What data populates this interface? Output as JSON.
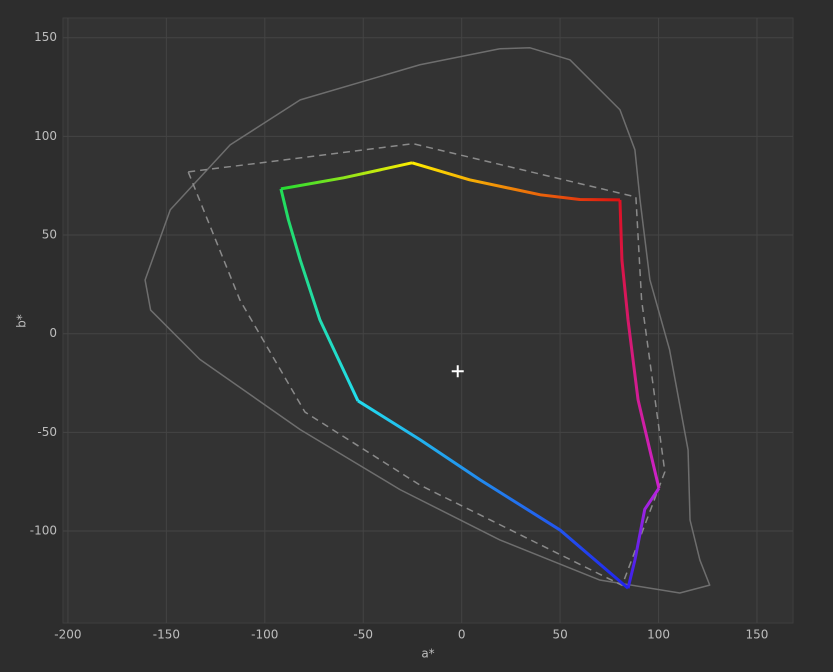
{
  "chart_data": {
    "type": "line",
    "x_label": "a*",
    "y_label": "b*",
    "xlim": [
      -202.5,
      168.3
    ],
    "ylim": [
      -146.6,
      160
    ],
    "xticks": [
      -200,
      -150,
      -100,
      -50,
      0,
      50,
      100,
      150
    ],
    "yticks": [
      -100,
      -50,
      0,
      50,
      100,
      150
    ],
    "grid": true,
    "series": [
      {
        "color": "#6e6e6e",
        "dash": "solid",
        "x": [
          19.4,
          -21.2,
          -82,
          -117.6,
          -148,
          -160.8,
          -158,
          -133,
          -82,
          -31.3,
          19.4,
          70,
          110.8,
          126,
          121,
          116,
          115,
          105.6,
          95.6,
          90.6,
          88,
          80.4,
          55,
          34.7,
          19.4
        ],
        "values": [
          144.4,
          136.3,
          118.5,
          95.7,
          62.8,
          27.2,
          12,
          -13,
          -48.6,
          -79,
          -104.5,
          -124.8,
          -131.4,
          -127.4,
          -114.7,
          -94.4,
          -58.9,
          -8.1,
          27.4,
          67.9,
          93.2,
          113.5,
          138.8,
          144.9,
          144.4
        ]
      },
      {
        "color": "#8a8a8a",
        "dash": "dashed",
        "x": [
          -138.9,
          -24.7,
          88.5,
          91.4,
          103.2,
          81.5,
          -21.2,
          -79.6,
          -112.6,
          -138.9
        ],
        "values": [
          82,
          96.3,
          69.3,
          17,
          -70,
          -127.5,
          -76.7,
          -39.7,
          17,
          82
        ]
      },
      {
        "colors": [
          "#22dd33",
          "#ffee00"
        ],
        "dash": "solid",
        "x": [
          -91.8,
          -60,
          -25.2
        ],
        "values": [
          73.4,
          79,
          86.6
        ]
      },
      {
        "colors": [
          "#ffee00",
          "#dd1111"
        ],
        "dash": "solid",
        "x": [
          -25.2,
          4,
          40,
          60,
          80.4
        ],
        "values": [
          86.6,
          78,
          70.4,
          68,
          67.8
        ]
      },
      {
        "colors": [
          "#dd1122",
          "#cc22cc"
        ],
        "dash": "solid",
        "x": [
          80.4,
          81.4,
          84.5,
          89.6,
          95.6,
          100.2
        ],
        "values": [
          67.8,
          37.4,
          7,
          -33.5,
          -59,
          -78.3
        ]
      },
      {
        "colors": [
          "#bb22dd",
          "#3322ee"
        ],
        "dash": "solid",
        "x": [
          100.2,
          93,
          88,
          84.5
        ],
        "values": [
          -78.3,
          -89,
          -114.7,
          -129
        ]
      },
      {
        "colors": [
          "#2222ee",
          "#22ddee"
        ],
        "dash": "solid",
        "x": [
          84.5,
          50,
          9.3,
          -21,
          -52.7
        ],
        "values": [
          -129,
          -99.5,
          -74,
          -53.8,
          -34
        ]
      },
      {
        "colors": [
          "#22ddee",
          "#22dd55"
        ],
        "dash": "solid",
        "x": [
          -52.7,
          -72,
          -82,
          -88,
          -91.8
        ],
        "values": [
          -34,
          7,
          37.4,
          57.7,
          73.4
        ]
      },
      {
        "color": "#ffffff",
        "marker": "plus",
        "x": [
          -2
        ],
        "values": [
          -19
        ]
      }
    ]
  }
}
